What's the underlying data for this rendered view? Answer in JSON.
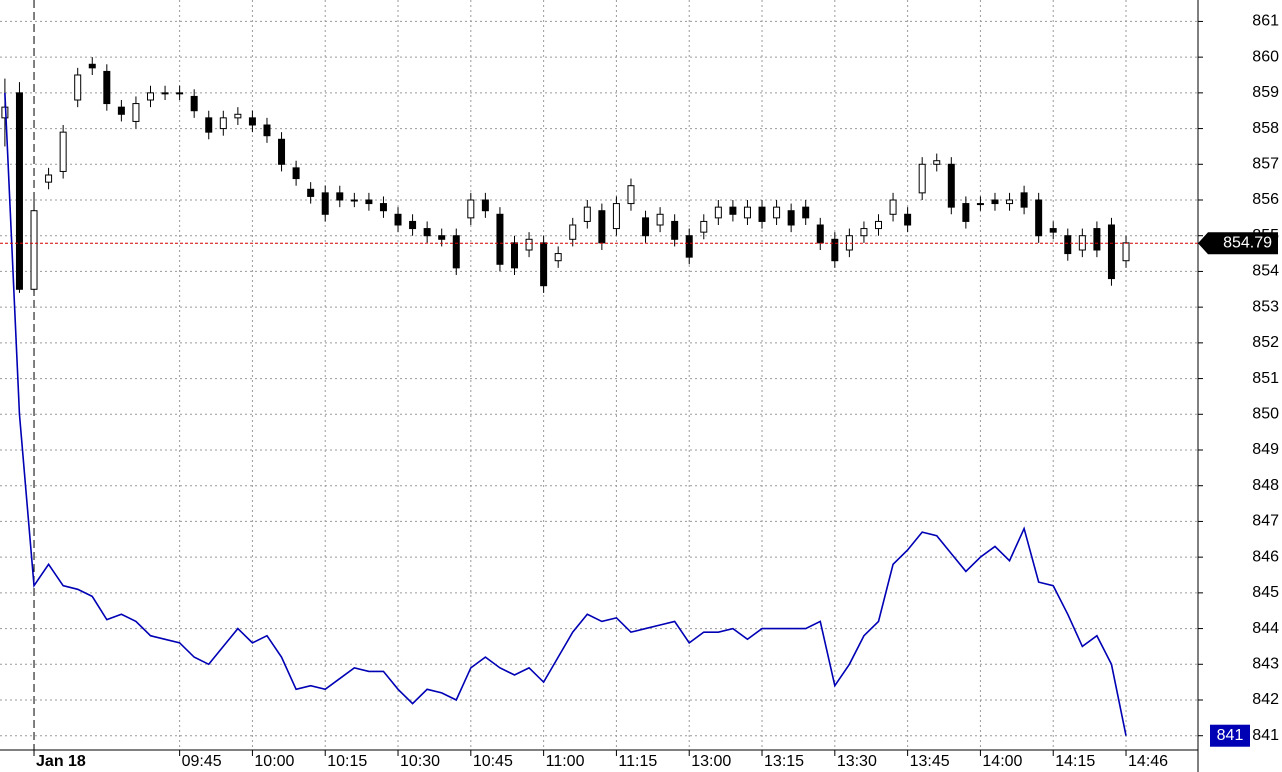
{
  "chart_data": {
    "type": "candlestick",
    "categories": [
      null,
      null,
      "Jan 18",
      null,
      null,
      null,
      null,
      null,
      null,
      null,
      null,
      null,
      "09:45",
      null,
      null,
      null,
      null,
      "10:00",
      null,
      null,
      null,
      null,
      "10:15",
      null,
      null,
      null,
      null,
      "10:30",
      null,
      null,
      null,
      null,
      "10:45",
      null,
      null,
      null,
      null,
      "11:00",
      null,
      null,
      null,
      null,
      "11:15",
      null,
      null,
      null,
      null,
      "13:00",
      null,
      null,
      null,
      null,
      "13:15",
      null,
      null,
      null,
      null,
      "13:30",
      null,
      null,
      null,
      null,
      "13:45",
      null,
      null,
      null,
      null,
      "14:00",
      null,
      null,
      null,
      null,
      "14:15",
      null,
      null,
      null,
      null,
      "14:46"
    ],
    "open": [
      858.3,
      859.0,
      853.5,
      856.5,
      856.8,
      858.8,
      859.8,
      859.6,
      858.6,
      858.2,
      858.8,
      859.0,
      859.0,
      858.9,
      858.3,
      858.0,
      858.3,
      858.3,
      858.1,
      857.7,
      856.9,
      856.3,
      856.2,
      856.2,
      856.0,
      856.0,
      855.9,
      855.6,
      855.4,
      855.2,
      855.0,
      855.0,
      855.5,
      856.0,
      855.6,
      854.8,
      854.6,
      854.8,
      854.3,
      854.9,
      855.4,
      855.7,
      855.2,
      855.9,
      855.5,
      855.3,
      855.4,
      855.0,
      855.1,
      855.5,
      855.8,
      855.5,
      855.8,
      855.5,
      855.7,
      855.8,
      855.3,
      854.9,
      854.6,
      855.0,
      855.2,
      855.6,
      855.6,
      856.2,
      857.0,
      857.0,
      855.9,
      855.9,
      856.0,
      855.9,
      856.2,
      856.0,
      855.2,
      855.0,
      854.6,
      855.2,
      855.3,
      854.3
    ],
    "high": [
      859.4,
      859.3,
      856.0,
      856.9,
      858.1,
      859.7,
      860.0,
      859.8,
      858.8,
      858.9,
      859.2,
      859.2,
      859.2,
      859.1,
      858.5,
      858.5,
      858.6,
      858.5,
      858.3,
      857.9,
      857.1,
      856.5,
      856.4,
      856.4,
      856.2,
      856.2,
      856.1,
      855.8,
      855.6,
      855.4,
      855.2,
      855.2,
      856.2,
      856.2,
      855.8,
      855.0,
      855.1,
      855.0,
      854.7,
      855.5,
      856.0,
      855.9,
      856.1,
      856.6,
      855.7,
      855.8,
      855.6,
      855.2,
      855.6,
      856.0,
      856.0,
      856.0,
      856.0,
      856.0,
      855.9,
      856.0,
      855.5,
      855.1,
      855.2,
      855.4,
      855.6,
      856.2,
      855.8,
      857.2,
      857.3,
      857.2,
      856.1,
      856.1,
      856.2,
      856.2,
      856.4,
      856.2,
      855.4,
      855.2,
      855.2,
      855.4,
      855.5,
      855.0
    ],
    "low": [
      857.5,
      853.4,
      853.4,
      856.3,
      856.6,
      858.6,
      859.5,
      858.5,
      858.2,
      858.0,
      858.6,
      858.8,
      858.8,
      858.3,
      857.7,
      857.8,
      858.1,
      857.9,
      857.6,
      856.8,
      856.4,
      855.9,
      855.4,
      855.8,
      855.8,
      855.7,
      855.5,
      855.1,
      855.0,
      854.8,
      854.7,
      853.9,
      855.3,
      855.5,
      854.0,
      853.9,
      854.4,
      853.4,
      854.1,
      854.7,
      855.2,
      854.6,
      855.0,
      855.7,
      854.8,
      855.1,
      854.7,
      854.2,
      854.9,
      855.3,
      855.4,
      855.3,
      855.2,
      855.3,
      855.1,
      855.3,
      854.6,
      854.1,
      854.4,
      854.8,
      855.0,
      855.4,
      855.1,
      856.0,
      856.8,
      855.6,
      855.2,
      855.7,
      855.7,
      855.7,
      855.6,
      854.8,
      854.9,
      854.3,
      854.4,
      854.4,
      853.6,
      854.1
    ],
    "close": [
      858.6,
      853.5,
      855.7,
      856.7,
      857.9,
      859.5,
      859.7,
      858.7,
      858.4,
      858.7,
      859.0,
      859.0,
      859.0,
      858.5,
      857.9,
      858.3,
      858.4,
      858.1,
      857.8,
      857.0,
      856.6,
      856.1,
      855.6,
      856.0,
      856.0,
      855.9,
      855.7,
      855.3,
      855.2,
      855.0,
      854.9,
      854.1,
      856.0,
      855.7,
      854.2,
      854.1,
      854.9,
      853.6,
      854.5,
      855.3,
      855.8,
      854.8,
      855.9,
      856.4,
      855.0,
      855.6,
      854.9,
      854.4,
      855.4,
      855.8,
      855.6,
      855.8,
      855.4,
      855.8,
      855.3,
      855.5,
      854.8,
      854.3,
      855.0,
      855.2,
      855.4,
      856.0,
      855.3,
      857.0,
      857.1,
      855.8,
      855.4,
      855.9,
      855.9,
      856.0,
      855.8,
      855.0,
      855.1,
      854.5,
      855.0,
      854.6,
      853.8,
      854.8
    ],
    "up_color": "#ffffff",
    "down_color": "#000000",
    "overlay": {
      "type": "line",
      "color": "#0000b4",
      "values": [
        859.0,
        850.0,
        845.2,
        845.8,
        845.2,
        845.1,
        844.9,
        844.25,
        844.4,
        844.2,
        843.8,
        843.7,
        843.6,
        843.2,
        843.0,
        843.5,
        844.0,
        843.6,
        843.8,
        843.2,
        842.3,
        842.4,
        842.3,
        842.6,
        842.9,
        842.8,
        842.8,
        842.3,
        841.9,
        842.3,
        842.2,
        842.0,
        842.9,
        843.2,
        842.9,
        842.7,
        842.9,
        842.5,
        843.2,
        843.9,
        844.4,
        844.2,
        844.3,
        843.9,
        844.0,
        844.1,
        844.2,
        843.6,
        843.9,
        843.9,
        844.0,
        843.7,
        844.0,
        844.0,
        844.0,
        844.0,
        844.2,
        842.4,
        843.0,
        843.8,
        844.2,
        845.8,
        846.2,
        846.7,
        846.6,
        846.1,
        845.6,
        846.0,
        846.3,
        845.9,
        846.8,
        845.3,
        845.2,
        844.4,
        843.5,
        843.8,
        843.0,
        841.0
      ]
    },
    "price_marker": 854.79,
    "line_marker": 841,
    "ylim": [
      840.6,
      861.6
    ],
    "yticks": [
      841,
      842,
      843,
      844,
      845,
      846,
      847,
      848,
      849,
      850,
      851,
      852,
      853,
      854,
      855,
      856,
      857,
      858,
      859,
      860,
      861
    ],
    "grid": true
  }
}
